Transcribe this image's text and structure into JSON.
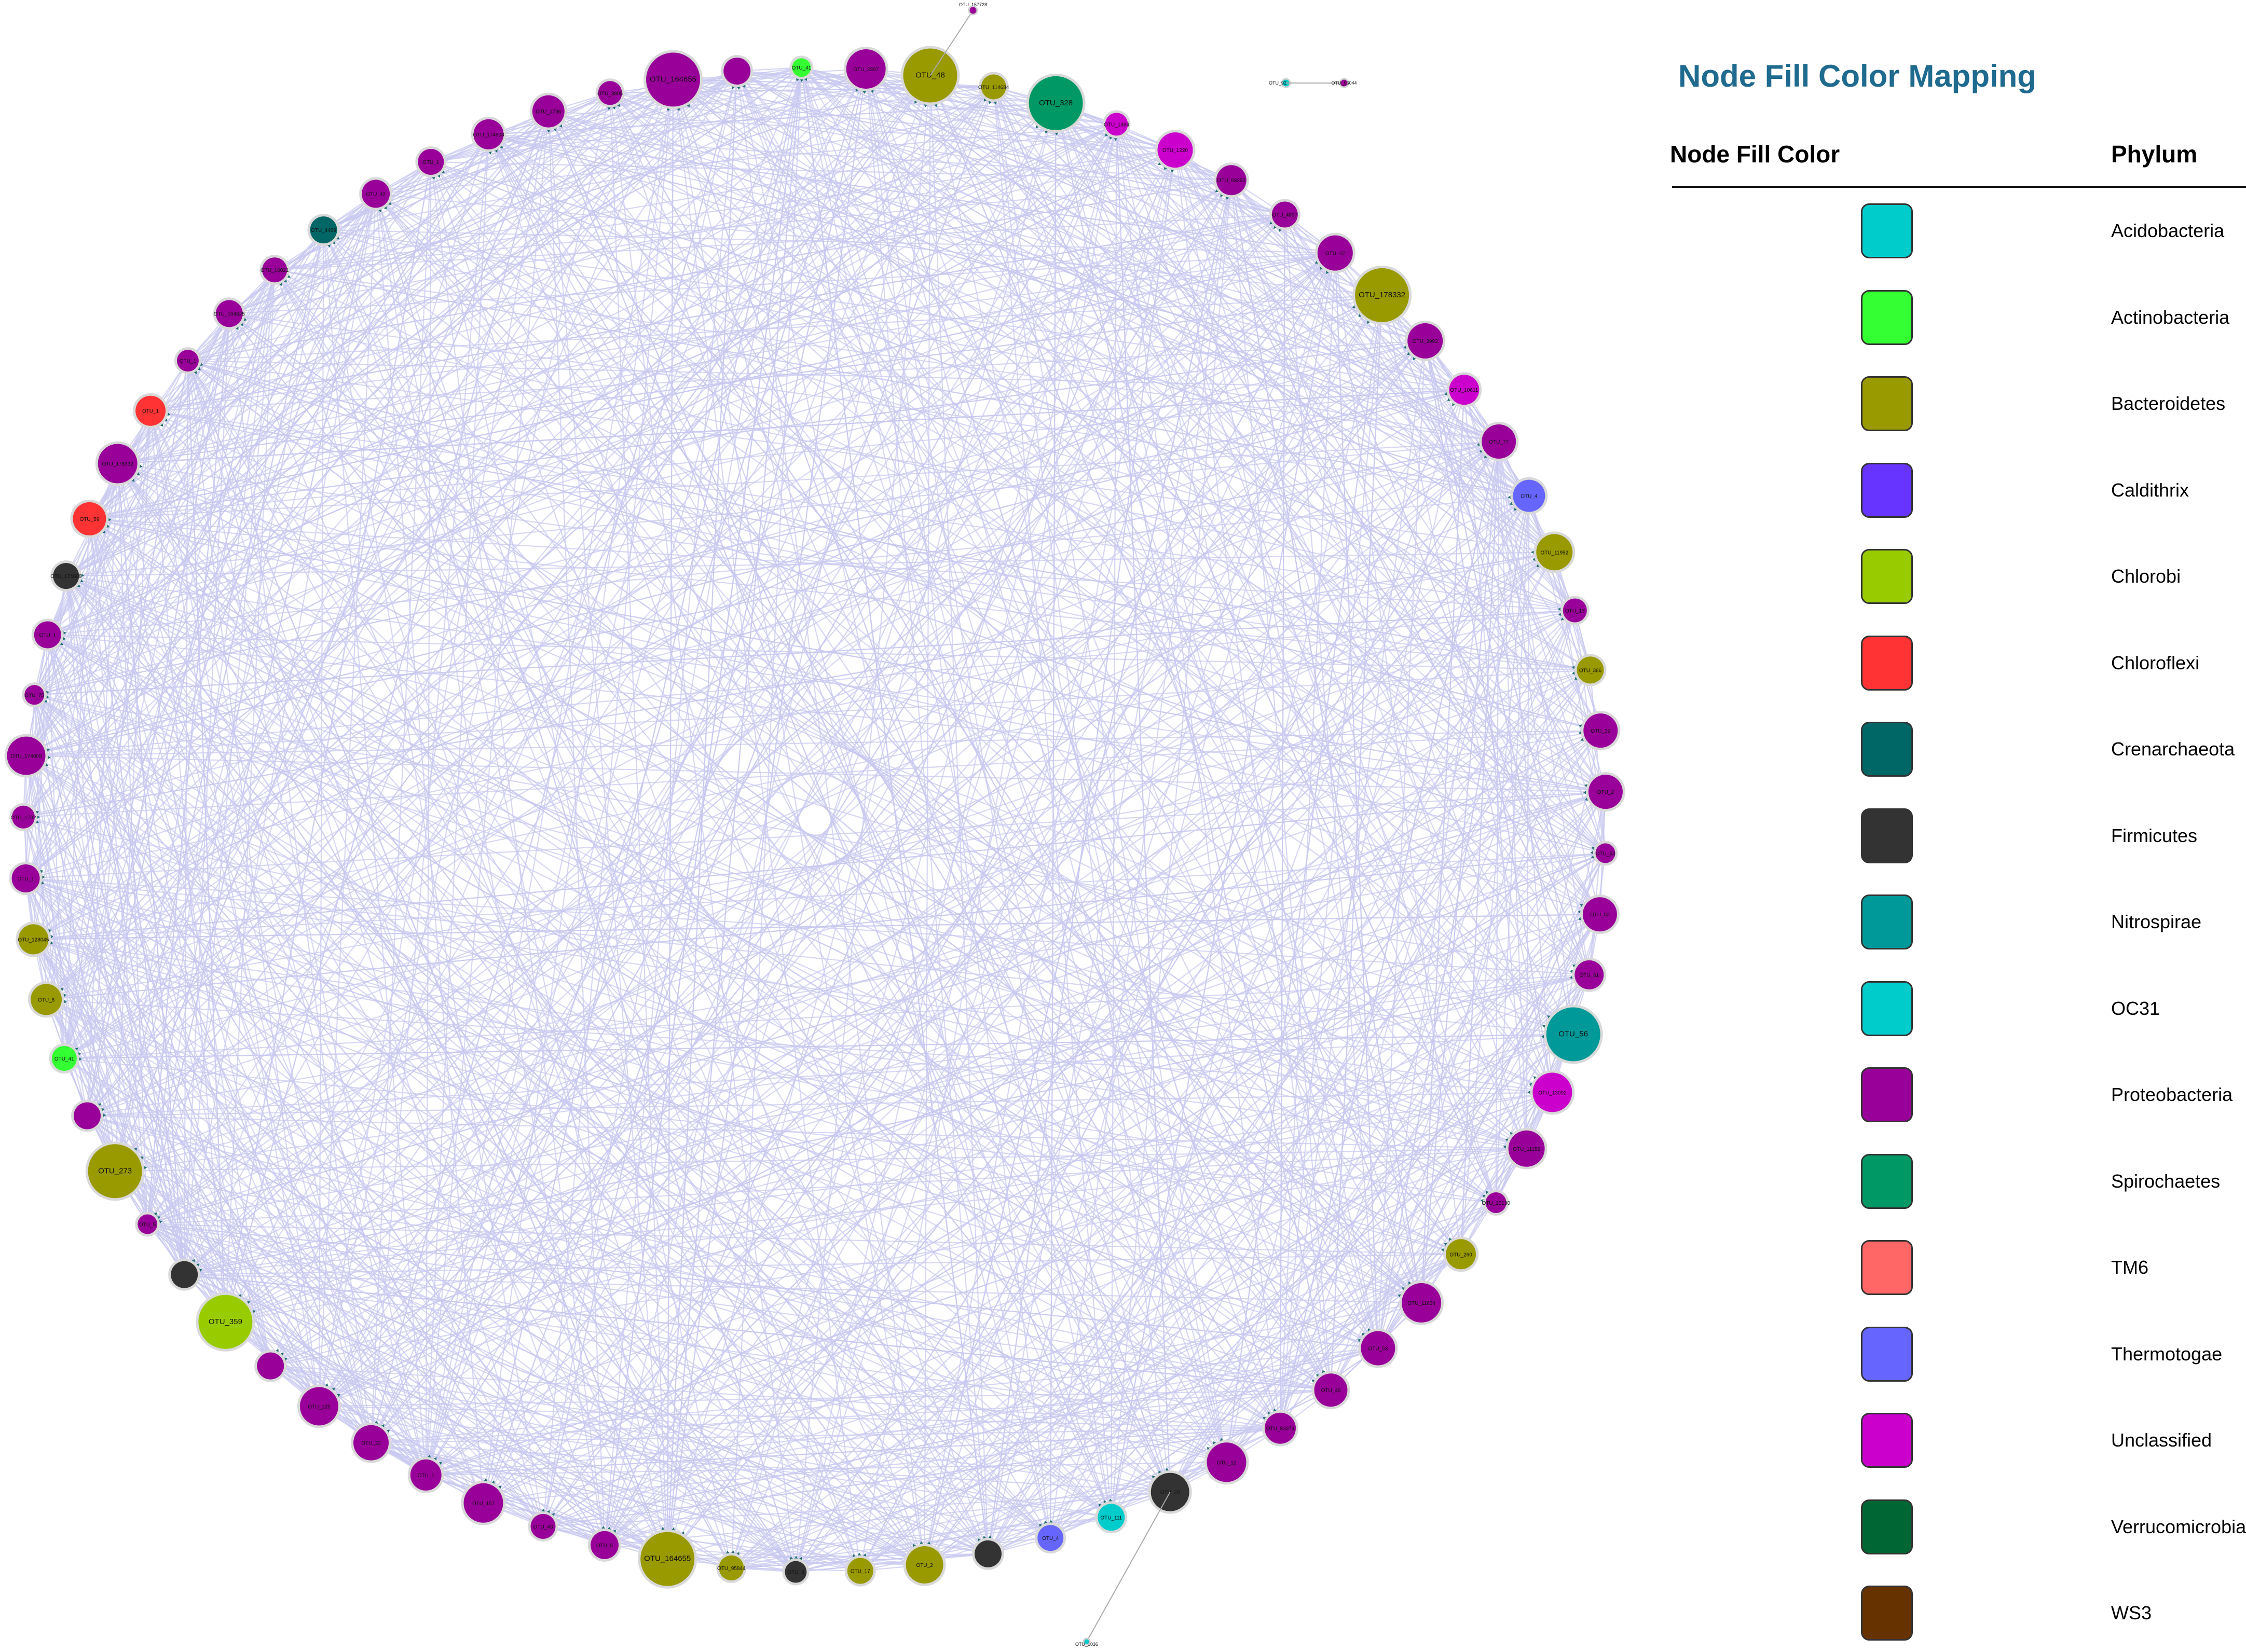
{
  "legend": {
    "title": "Node Fill Color Mapping",
    "col_color": "Node Fill Color",
    "col_phylum": "Phylum",
    "items": [
      {
        "phylum": "Acidobacteria",
        "color": "#00CCCC"
      },
      {
        "phylum": "Actinobacteria",
        "color": "#33FF33"
      },
      {
        "phylum": "Bacteroidetes",
        "color": "#999900"
      },
      {
        "phylum": "Caldithrix",
        "color": "#6633FF"
      },
      {
        "phylum": "Chlorobi",
        "color": "#99CC00"
      },
      {
        "phylum": "Chloroflexi",
        "color": "#FF3333"
      },
      {
        "phylum": "Crenarchaeota",
        "color": "#006666"
      },
      {
        "phylum": "Firmicutes",
        "color": "#333333"
      },
      {
        "phylum": "Nitrospirae",
        "color": "#009999"
      },
      {
        "phylum": "OC31",
        "color": "#00CCCC"
      },
      {
        "phylum": "Proteobacteria",
        "color": "#990099"
      },
      {
        "phylum": "Spirochaetes",
        "color": "#009966"
      },
      {
        "phylum": "TM6",
        "color": "#FF6666"
      },
      {
        "phylum": "Thermotogae",
        "color": "#6666FF"
      },
      {
        "phylum": "Unclassified",
        "color": "#CC00CC"
      },
      {
        "phylum": "Verrucomicrobia",
        "color": "#006633"
      },
      {
        "phylum": "WS3",
        "color": "#663300"
      }
    ]
  },
  "network": {
    "edge_color": "#c8c8f0",
    "arrow_color": "#1f6f6f",
    "nodes": [
      {
        "label": "OTU_164655",
        "phylum": "Proteobacteria"
      },
      {
        "label": "",
        "phylum": "Proteobacteria"
      },
      {
        "label": "OTU_41",
        "phylum": "Actinobacteria"
      },
      {
        "label": "OTU_2397",
        "phylum": "Proteobacteria"
      },
      {
        "label": "OTU_48",
        "phylum": "Bacteroidetes"
      },
      {
        "label": "OTU_114684",
        "phylum": "Bacteroidetes"
      },
      {
        "label": "OTU_328",
        "phylum": "Spirochaetes"
      },
      {
        "label": "OTU_1384",
        "phylum": "Unclassified"
      },
      {
        "label": "OTU_1220",
        "phylum": "Unclassified"
      },
      {
        "label": "OTU_93292",
        "phylum": "Proteobacteria"
      },
      {
        "label": "OTU_4837",
        "phylum": "Proteobacteria"
      },
      {
        "label": "OTU_42",
        "phylum": "Proteobacteria"
      },
      {
        "label": "OTU_178332",
        "phylum": "Bacteroidetes"
      },
      {
        "label": "OTU_3993",
        "phylum": "Proteobacteria"
      },
      {
        "label": "OTU_10611",
        "phylum": "Unclassified"
      },
      {
        "label": "OTU_77",
        "phylum": "Proteobacteria"
      },
      {
        "label": "OTU_4",
        "phylum": "Thermotogae"
      },
      {
        "label": "OTU_11952",
        "phylum": "Bacteroidetes"
      },
      {
        "label": "OTU_13",
        "phylum": "Proteobacteria"
      },
      {
        "label": "OTU_386",
        "phylum": "Bacteroidetes"
      },
      {
        "label": "OTU_39",
        "phylum": "Proteobacteria"
      },
      {
        "label": "OTU_2",
        "phylum": "Proteobacteria"
      },
      {
        "label": "OTU_54",
        "phylum": "Proteobacteria"
      },
      {
        "label": "OTU_52",
        "phylum": "Proteobacteria"
      },
      {
        "label": "OTU_61",
        "phylum": "Proteobacteria"
      },
      {
        "label": "OTU_56",
        "phylum": "Nitrospirae"
      },
      {
        "label": "OTU_13092",
        "phylum": "Unclassified"
      },
      {
        "label": "OTU_11159",
        "phylum": "Proteobacteria"
      },
      {
        "label": "OTU_10130",
        "phylum": "Proteobacteria"
      },
      {
        "label": "OTU_260",
        "phylum": "Bacteroidetes"
      },
      {
        "label": "OTU_11634",
        "phylum": "Proteobacteria"
      },
      {
        "label": "OTU_53",
        "phylum": "Proteobacteria"
      },
      {
        "label": "OTU_46",
        "phylum": "Proteobacteria"
      },
      {
        "label": "OTU_93073",
        "phylum": "Proteobacteria"
      },
      {
        "label": "OTU_12",
        "phylum": "Proteobacteria"
      },
      {
        "label": "OTU_20",
        "phylum": "Firmicutes"
      },
      {
        "label": "OTU_111",
        "phylum": "Acidobacteria"
      },
      {
        "label": "OTU_4",
        "phylum": "Thermotogae"
      },
      {
        "label": "",
        "phylum": "Firmicutes"
      },
      {
        "label": "OTU_2",
        "phylum": "Bacteroidetes"
      },
      {
        "label": "OTU_17",
        "phylum": "Bacteroidetes"
      },
      {
        "label": "OTU_3",
        "phylum": "Firmicutes"
      },
      {
        "label": "OTU_95844",
        "phylum": "Bacteroidetes"
      },
      {
        "label": "OTU_164655",
        "phylum": "Bacteroidetes"
      },
      {
        "label": "OTU_5",
        "phylum": "Proteobacteria"
      },
      {
        "label": "OTU_43",
        "phylum": "Proteobacteria"
      },
      {
        "label": "OTU_157",
        "phylum": "Proteobacteria"
      },
      {
        "label": "OTU_1",
        "phylum": "Proteobacteria"
      },
      {
        "label": "OTU_22",
        "phylum": "Proteobacteria"
      },
      {
        "label": "OTU_125",
        "phylum": "Proteobacteria"
      },
      {
        "label": "",
        "phylum": "Proteobacteria"
      },
      {
        "label": "OTU_359",
        "phylum": "Chlorobi"
      },
      {
        "label": "",
        "phylum": "Firmicutes"
      },
      {
        "label": "OTU_5",
        "phylum": "Proteobacteria"
      },
      {
        "label": "OTU_273",
        "phylum": "Bacteroidetes"
      },
      {
        "label": "",
        "phylum": "Proteobacteria"
      },
      {
        "label": "OTU_41",
        "phylum": "Actinobacteria"
      },
      {
        "label": "OTU_8",
        "phylum": "Bacteroidetes"
      },
      {
        "label": "OTU_128045",
        "phylum": "Bacteroidetes"
      },
      {
        "label": "OTU_1",
        "phylum": "Proteobacteria"
      },
      {
        "label": "OTU_1732",
        "phylum": "Proteobacteria"
      },
      {
        "label": "OTU_174609",
        "phylum": "Proteobacteria"
      },
      {
        "label": "OTU_75",
        "phylum": "Proteobacteria"
      },
      {
        "label": "OTU_1",
        "phylum": "Proteobacteria"
      },
      {
        "label": "OTU_174608",
        "phylum": "Firmicutes"
      },
      {
        "label": "OTU_59",
        "phylum": "Chloroflexi"
      },
      {
        "label": "OTU_178332",
        "phylum": "Proteobacteria"
      },
      {
        "label": "OTU_1",
        "phylum": "Chloroflexi"
      },
      {
        "label": "OTU_1",
        "phylum": "Proteobacteria"
      },
      {
        "label": "OTU_104525",
        "phylum": "Proteobacteria"
      },
      {
        "label": "OTU_16021",
        "phylum": "Proteobacteria"
      },
      {
        "label": "OTU_4469",
        "phylum": "Crenarchaeota"
      },
      {
        "label": "OTU_42",
        "phylum": "Proteobacteria"
      },
      {
        "label": "OTU_1",
        "phylum": "Proteobacteria"
      },
      {
        "label": "OTU_174608",
        "phylum": "Proteobacteria"
      },
      {
        "label": "OTU_1736",
        "phylum": "Proteobacteria"
      },
      {
        "label": "OTU_3805",
        "phylum": "Proteobacteria"
      }
    ],
    "outliers": [
      {
        "label": "OTU_157728",
        "phylum": "Proteobacteria"
      },
      {
        "label": "OTU_92",
        "phylum": "Acidobacteria"
      },
      {
        "label": "OTU_96044",
        "phylum": "Proteobacteria"
      },
      {
        "label": "OTU_1036",
        "phylum": "Acidobacteria"
      }
    ]
  }
}
